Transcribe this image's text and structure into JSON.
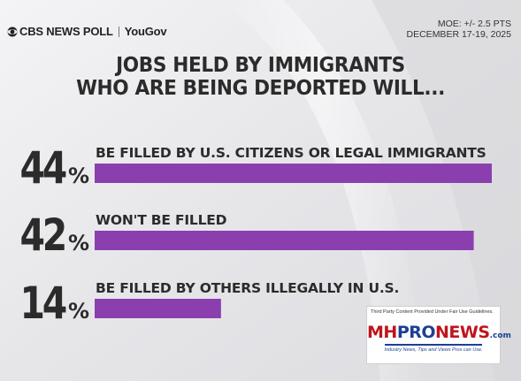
{
  "header": {
    "brand": "CBS NEWS POLL",
    "partner": "YouGov",
    "moe": "MOE: +/- 2.5 PTS",
    "dates": "DECEMBER 17-19, 2025"
  },
  "title_lines": [
    "JOBS HELD BY IMMIGRANTS",
    "WHO ARE BEING DEPORTED WILL..."
  ],
  "colors": {
    "bar": "#8b3fae",
    "number": "#2b2b2b"
  },
  "watermark": {
    "note": "Third Party Content Provided Under Fair Use Guidelines.",
    "logo_mh": "MH",
    "logo_pro": "PRO",
    "logo_news": "NEWS",
    "logo_com": ".com",
    "tagline": "Industry News, Tips and Views Pros can Use."
  },
  "chart_data": {
    "type": "bar",
    "orientation": "horizontal",
    "categories": [
      "BE FILLED BY U.S. CITIZENS OR LEGAL IMMIGRANTS",
      "WON'T BE FILLED",
      "BE FILLED BY OTHERS ILLEGALLY IN U.S."
    ],
    "values": [
      44,
      42,
      14
    ],
    "value_labels": [
      "44",
      "42",
      "14"
    ],
    "unit": "%",
    "title": "JOBS HELD BY IMMIGRANTS WHO ARE BEING DEPORTED WILL...",
    "xlim": [
      0,
      44
    ],
    "grid": false,
    "legend": "none"
  }
}
